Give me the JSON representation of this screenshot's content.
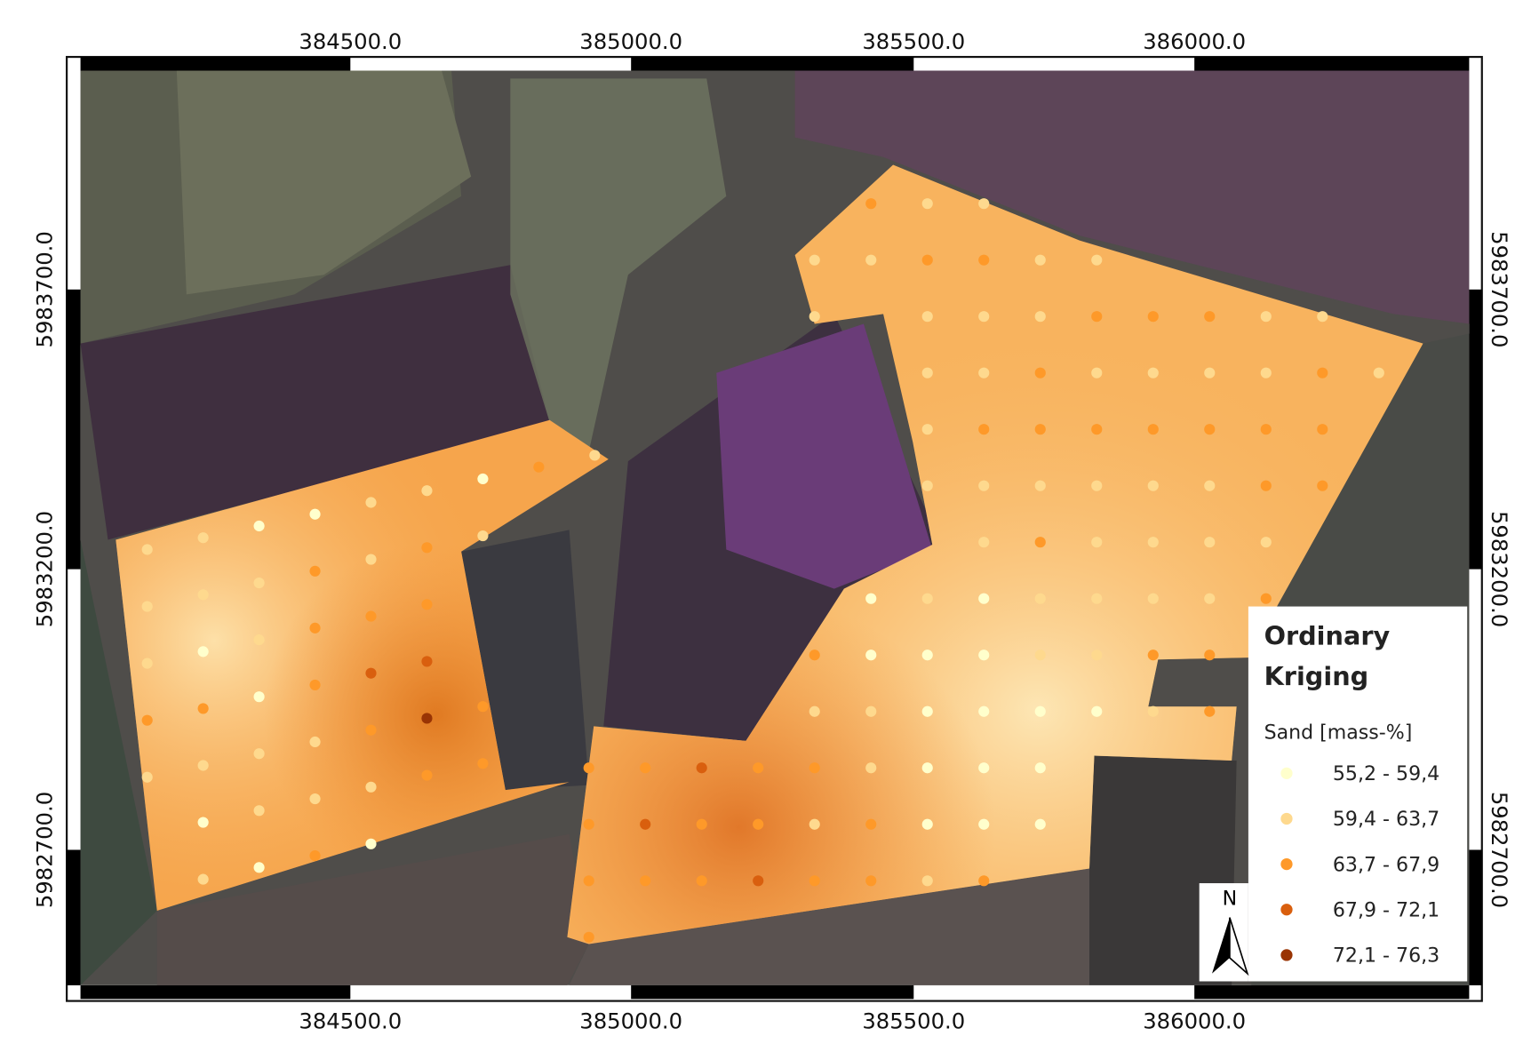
{
  "map": {
    "title": "Ordinary Kriging",
    "north": "N",
    "legend": {
      "title": "Sand [mass-%]",
      "classes": [
        {
          "label": "55,2 - 59,4",
          "color": "#ffffcc"
        },
        {
          "label": "59,4 - 63,7",
          "color": "#fed98e"
        },
        {
          "label": "63,7 - 67,9",
          "color": "#fe9929"
        },
        {
          "label": "67,9 - 72,1",
          "color": "#d95f0e"
        },
        {
          "label": "72,1 - 76,3",
          "color": "#993404"
        }
      ]
    },
    "x_ticks": [
      "384500.0",
      "385000.0",
      "385500.0",
      "386000.0"
    ],
    "y_ticks": [
      "5983700.0",
      "5983200.0",
      "5982700.0"
    ]
  }
}
